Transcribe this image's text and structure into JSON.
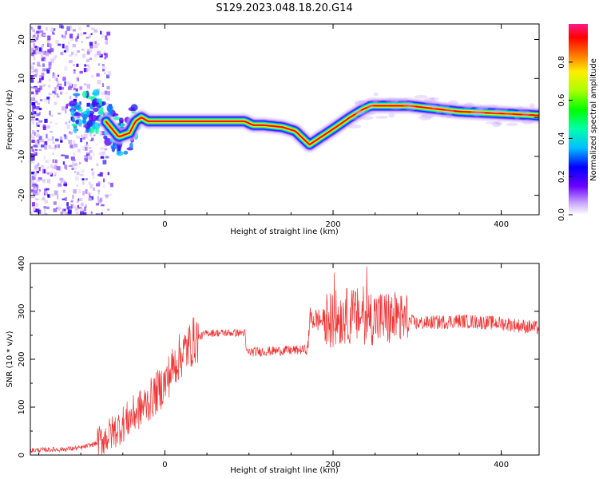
{
  "title": "S129.2023.048.18.20.G14",
  "chart_data": [
    {
      "type": "heatmap",
      "xlabel": "Height of straight line (km)",
      "ylabel": "Frequency (Hz)",
      "xlim": [
        -160,
        445
      ],
      "ylim": [
        -25,
        24
      ],
      "x_ticks": [
        0,
        200,
        400
      ],
      "y_ticks": [
        -20,
        -10,
        0,
        10,
        20
      ],
      "colorbar": {
        "label": "Normalized spectral amplitude",
        "range": [
          0,
          1
        ],
        "ticks": [
          "0.0",
          "0.2",
          "0.4",
          "0.6",
          "0.8"
        ],
        "tick_values": [
          0,
          0.2,
          0.4,
          0.6,
          0.8
        ]
      },
      "ridge": {
        "x": [
          -80,
          -55,
          -42,
          -35,
          -28,
          -20,
          50,
          95,
          105,
          118,
          140,
          155,
          172,
          200,
          220,
          235,
          245,
          290,
          310,
          350,
          400,
          445
        ],
        "y": [
          1.5,
          -5,
          -4,
          -1,
          0,
          -1,
          -1,
          -1,
          -2,
          -2,
          -2.5,
          -3.5,
          -7,
          -3,
          0,
          2,
          3,
          3,
          2.5,
          1.5,
          1,
          0.5
        ]
      }
    },
    {
      "type": "line",
      "xlabel": "Height of straight line (km)",
      "ylabel": "SNR (10 * v/v)",
      "xlim": [
        -160,
        445
      ],
      "ylim": [
        0,
        400
      ],
      "x_ticks": [
        0,
        200,
        400
      ],
      "y_ticks": [
        0,
        100,
        200,
        300,
        400
      ],
      "color": "#ee3333",
      "envelope": {
        "x": [
          -160,
          -120,
          -100,
          -80,
          -60,
          -40,
          -20,
          0,
          15,
          25,
          35,
          50,
          95,
          97,
          170,
          172,
          190,
          200,
          215,
          240,
          260,
          290,
          300,
          350,
          400,
          445
        ],
        "y": [
          10,
          12,
          15,
          25,
          50,
          80,
          110,
          150,
          200,
          220,
          240,
          255,
          255,
          215,
          220,
          285,
          280,
          285,
          290,
          290,
          285,
          280,
          275,
          280,
          275,
          265
        ]
      }
    }
  ]
}
